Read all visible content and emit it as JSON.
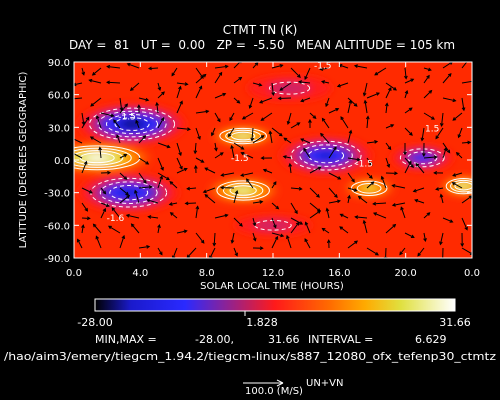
{
  "chart_data": {
    "type": "heatmap",
    "title": "CTMT TN (K)",
    "subtitle": "DAY =  81   UT =  0.00   ZP =  -5.50   MEAN ALTITUDE = 105 km",
    "xlabel": "SOLAR LOCAL TIME (HOURS)",
    "ylabel": "LATITUDE (DEGREES GEOGRAPHIC)",
    "xlim": [
      0,
      24
    ],
    "ylim": [
      -90,
      90
    ],
    "x_ticks": [
      "0.0",
      "4.0",
      "8.0",
      "12.0",
      "16.0",
      "20.0",
      "0.0"
    ],
    "y_ticks": [
      "-90.0",
      "-60.0",
      "-30.0",
      "0.0",
      "30.0",
      "60.0",
      "90.0"
    ],
    "colorbar": {
      "min_label": "-28.00",
      "mid_label": "1.828",
      "max_label": "31.66",
      "colors": [
        "#000000",
        "#1a1acc",
        "#2a2aff",
        "#ff1a1a",
        "#ff6a00",
        "#ffaa00",
        "#e0e040",
        "#ffffff"
      ]
    },
    "stats": {
      "minmax_label": "MIN,MAX =",
      "min": "-28.00,",
      "max": "31.66",
      "interval_label": "INTERVAL =",
      "interval": "6.629"
    },
    "contour_labels": [
      {
        "text": "-1.5",
        "x": 15,
        "y": 84
      },
      {
        "text": "-1.5",
        "x": 3.2,
        "y": 37
      },
      {
        "text": "-1.5",
        "x": 10,
        "y": -1
      },
      {
        "text": "-1.5",
        "x": 17.5,
        "y": -6
      },
      {
        "text": "1.5",
        "x": 21.6,
        "y": 26
      },
      {
        "text": "-1.6",
        "x": 2.5,
        "y": -56
      }
    ],
    "features": [
      {
        "kind": "min",
        "x": 3.5,
        "y": 33,
        "rx": 2.8,
        "ry": 16,
        "value": -28.0
      },
      {
        "kind": "min",
        "x": 3.3,
        "y": -30,
        "rx": 2.6,
        "ry": 15,
        "value": -24.0
      },
      {
        "kind": "min",
        "x": 15.2,
        "y": 4,
        "rx": 2.4,
        "ry": 15,
        "value": -20.0
      },
      {
        "kind": "min",
        "x": 21.0,
        "y": 2,
        "rx": 1.6,
        "ry": 10,
        "value": -16.0
      },
      {
        "kind": "min",
        "x": 13.0,
        "y": 66,
        "rx": 2.2,
        "ry": 10,
        "value": -4.0
      },
      {
        "kind": "min",
        "x": 12.0,
        "y": -60,
        "rx": 2.0,
        "ry": 8,
        "value": -3.0
      },
      {
        "kind": "max",
        "x": 1.4,
        "y": 2,
        "rx": 2.8,
        "ry": 12,
        "value": 31.66
      },
      {
        "kind": "max",
        "x": 10.2,
        "y": 22,
        "rx": 1.6,
        "ry": 8,
        "value": 25.0
      },
      {
        "kind": "max",
        "x": 10.2,
        "y": -28,
        "rx": 1.8,
        "ry": 10,
        "value": 24.0
      },
      {
        "kind": "max",
        "x": 17.8,
        "y": -26,
        "rx": 1.3,
        "ry": 8,
        "value": 20.0
      },
      {
        "kind": "max",
        "x": 23.5,
        "y": -24,
        "rx": 1.2,
        "ry": 8,
        "value": 23.0
      }
    ]
  },
  "footer": {
    "path": "/hao/aim3/emery/tiegcm_1.94.2/tiegcm-linux/s887_12080_ofx_tefenp30_ctmtz",
    "vector_scale_label": "100.0 (M/S)",
    "vector_label": "UN+VN"
  }
}
